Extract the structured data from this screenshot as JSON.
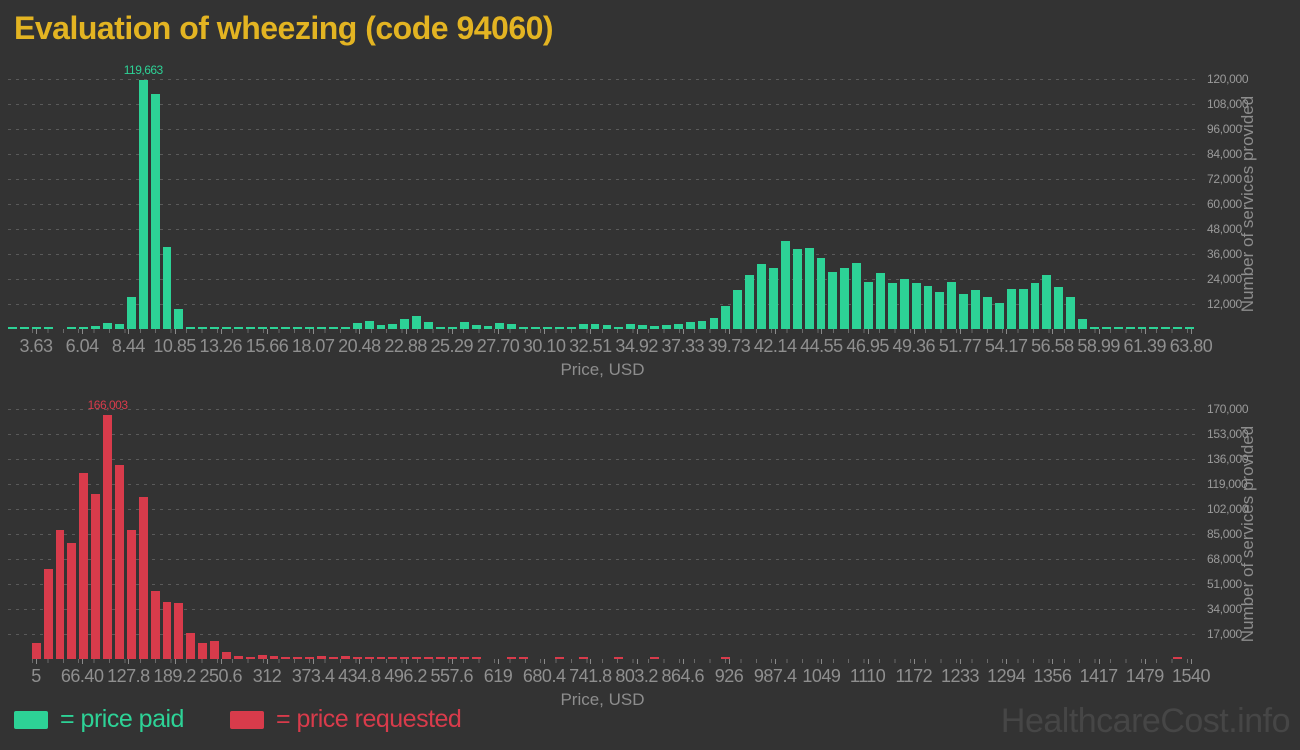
{
  "title": "Evaluation of wheezing (code 94060)",
  "watermark": "HealthcareCost.info",
  "colors": {
    "background": "#333333",
    "title": "#e3b422",
    "price_paid": "#2dd296",
    "price_requested": "#d83b4b",
    "gridline": "#5a5a5a",
    "tick_text": "#8f8f8f",
    "axis_title_text": "#8d8d8d",
    "watermark_text": "#464646"
  },
  "legend": {
    "items": [
      {
        "label": "= price paid",
        "color": "#2dd296"
      },
      {
        "label": "= price requested",
        "color": "#d83b4b"
      }
    ]
  },
  "chart_data": [
    {
      "type": "bar",
      "name": "price_paid_histogram",
      "color": "#2dd296",
      "xlabel": "Price, USD",
      "ylabel": "Number of services provided",
      "x_axis_range": [
        3.63,
        63.8
      ],
      "ylim": [
        0,
        120000
      ],
      "grid": "dashed horizontal",
      "legend_position": "bottom-left",
      "peak_label": "119,663",
      "peak_value": 119663,
      "x_tick_labels": [
        "3.63",
        "6.04",
        "8.44",
        "10.85",
        "13.26",
        "15.66",
        "18.07",
        "20.48",
        "22.88",
        "25.29",
        "27.70",
        "30.10",
        "32.51",
        "34.92",
        "37.33",
        "39.73",
        "42.14",
        "44.55",
        "46.95",
        "49.36",
        "51.77",
        "54.17",
        "56.58",
        "58.99",
        "61.39",
        "63.80"
      ],
      "y_tick_labels": [
        "12,000",
        "24,000",
        "36,000",
        "48,000",
        "60,000",
        "72,000",
        "84,000",
        "96,000",
        "108,000",
        "120,000"
      ],
      "y_tick_values": [
        12000,
        24000,
        36000,
        48000,
        60000,
        72000,
        84000,
        96000,
        108000,
        120000
      ],
      "approx_bin_width_usd": 0.6,
      "values": [
        500,
        400,
        500,
        400,
        0,
        500,
        400,
        1500,
        3000,
        2600,
        15500,
        119663,
        113000,
        39200,
        9800,
        1200,
        500,
        400,
        700,
        400,
        600,
        400,
        600,
        400,
        700,
        400,
        600,
        500,
        900,
        3100,
        3900,
        2100,
        2200,
        4800,
        6100,
        3400,
        1000,
        900,
        3600,
        1700,
        1500,
        2700,
        2400,
        800,
        700,
        900,
        1100,
        800,
        2300,
        2600,
        2100,
        1000,
        2400,
        2100,
        1500,
        2000,
        2600,
        3300,
        3800,
        5200,
        11200,
        18500,
        25900,
        31400,
        29100,
        42400,
        38400,
        38900,
        34300,
        27400,
        29100,
        31900,
        22700,
        26900,
        22200,
        24100,
        22200,
        20600,
        17800,
        22500,
        16900,
        18500,
        15400,
        12500,
        19000,
        19300,
        22000,
        25900,
        20100,
        15400,
        4900,
        400,
        350,
        400,
        350,
        400,
        350,
        400,
        350,
        400
      ]
    },
    {
      "type": "bar",
      "name": "price_requested_histogram",
      "color": "#d83b4b",
      "xlabel": "Price, USD",
      "ylabel": "Number of services provided",
      "x_axis_range": [
        5,
        1540
      ],
      "ylim": [
        0,
        170000
      ],
      "grid": "dashed horizontal",
      "legend_position": "bottom-left",
      "peak_label": "166,003",
      "peak_value": 166003,
      "x_tick_labels": [
        "5",
        "66.40",
        "127.8",
        "189.2",
        "250.6",
        "312",
        "373.4",
        "434.8",
        "496.2",
        "557.6",
        "619",
        "680.4",
        "741.8",
        "803.2",
        "864.6",
        "926",
        "987.4",
        "1049",
        "1110",
        "1172",
        "1233",
        "1294",
        "1356",
        "1417",
        "1479",
        "1540"
      ],
      "y_tick_labels": [
        "17,000",
        "34,000",
        "51,000",
        "68,000",
        "85,000",
        "102,000",
        "119,000",
        "136,000",
        "153,000",
        "170,000"
      ],
      "y_tick_values": [
        17000,
        34000,
        51000,
        68000,
        85000,
        102000,
        119000,
        136000,
        153000,
        170000
      ],
      "approx_bin_width_usd": 15.5,
      "values": [
        0,
        0,
        10600,
        60900,
        87400,
        78700,
        126200,
        112500,
        166003,
        132100,
        87400,
        110200,
        46000,
        38700,
        37800,
        17500,
        10600,
        12200,
        4500,
        2000,
        1500,
        2500,
        2300,
        1400,
        800,
        600,
        1800,
        1500,
        1800,
        500,
        400,
        500,
        400,
        400,
        400,
        400,
        700,
        400,
        300,
        400,
        0,
        0,
        700,
        300,
        0,
        0,
        400,
        0,
        300,
        0,
        0,
        400,
        0,
        0,
        300,
        0,
        0,
        0,
        0,
        0,
        300,
        0,
        0,
        0,
        0,
        0,
        0,
        0,
        0,
        0,
        0,
        0,
        0,
        0,
        0,
        0,
        0,
        0,
        0,
        0,
        0,
        0,
        0,
        0,
        0,
        0,
        0,
        0,
        0,
        0,
        0,
        0,
        0,
        0,
        0,
        0,
        0,
        0,
        1500,
        0
      ]
    }
  ]
}
